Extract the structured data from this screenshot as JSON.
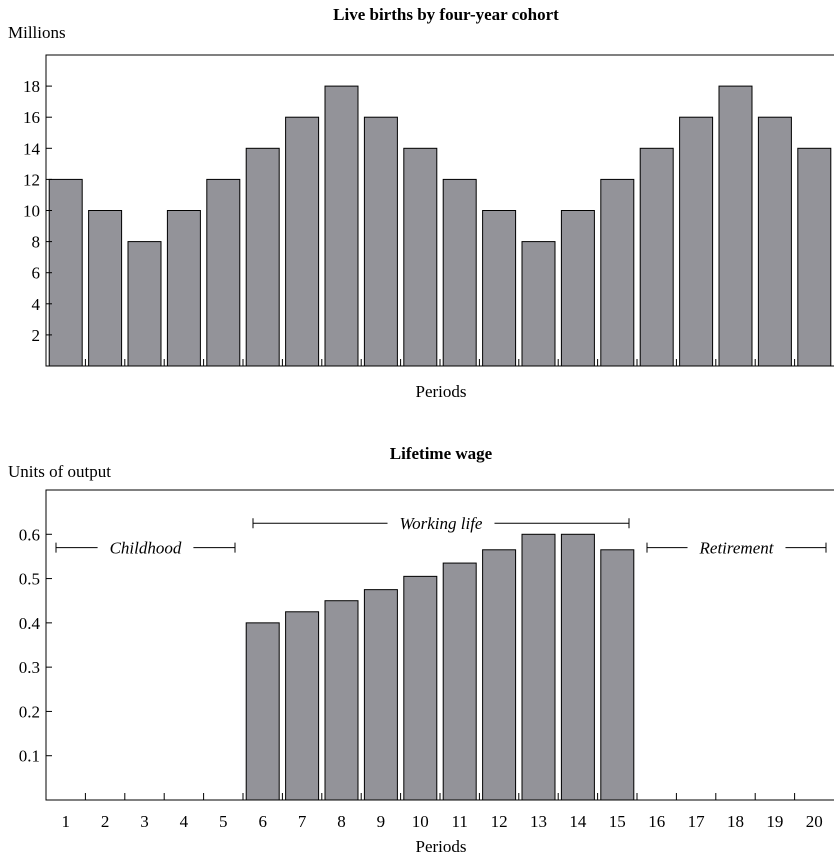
{
  "chart_data": [
    {
      "type": "bar",
      "title": "Live births by four-year cohort",
      "ylabel": "Millions",
      "xlabel": "Periods",
      "ylim": [
        0,
        20
      ],
      "yticks": [
        2,
        4,
        6,
        8,
        10,
        12,
        14,
        16,
        18
      ],
      "categories": [
        1,
        2,
        3,
        4,
        5,
        6,
        7,
        8,
        9,
        10,
        11,
        12,
        13,
        14,
        15,
        16,
        17,
        18,
        19,
        20
      ],
      "values": [
        12,
        10,
        8,
        10,
        12,
        14,
        16,
        18,
        16,
        14,
        12,
        10,
        8,
        10,
        12,
        14,
        16,
        18,
        16,
        14
      ],
      "bar_color": "#939399",
      "grid": false
    },
    {
      "type": "bar",
      "title": "Lifetime wage",
      "ylabel": "Units of output",
      "xlabel": "Periods",
      "ylim": [
        0,
        0.7
      ],
      "yticks": [
        "0.1",
        "0.2",
        "0.3",
        "0.4",
        "0.5",
        "0.6"
      ],
      "categories": [
        1,
        2,
        3,
        4,
        5,
        6,
        7,
        8,
        9,
        10,
        11,
        12,
        13,
        14,
        15,
        16,
        17,
        18,
        19,
        20
      ],
      "tick_labels": [
        "1",
        "2",
        "3",
        "4",
        "5",
        "6",
        "7",
        "8",
        "9",
        "10",
        "11",
        "12",
        "13",
        "14",
        "15",
        "16",
        "17",
        "18",
        "19",
        "20"
      ],
      "values": [
        0,
        0,
        0,
        0,
        0,
        0.4,
        0.425,
        0.45,
        0.475,
        0.505,
        0.535,
        0.565,
        0.6,
        0.6,
        0.565,
        0,
        0,
        0,
        0,
        0
      ],
      "bar_color": "#939399",
      "grid": false,
      "annotations": [
        {
          "text": "Childhood",
          "from": 1,
          "to": 5,
          "level": 0.57
        },
        {
          "text": "Working life",
          "from": 6,
          "to": 15,
          "level": 0.625
        },
        {
          "text": "Retirement",
          "from": 16,
          "to": 20,
          "level": 0.57
        }
      ]
    }
  ]
}
